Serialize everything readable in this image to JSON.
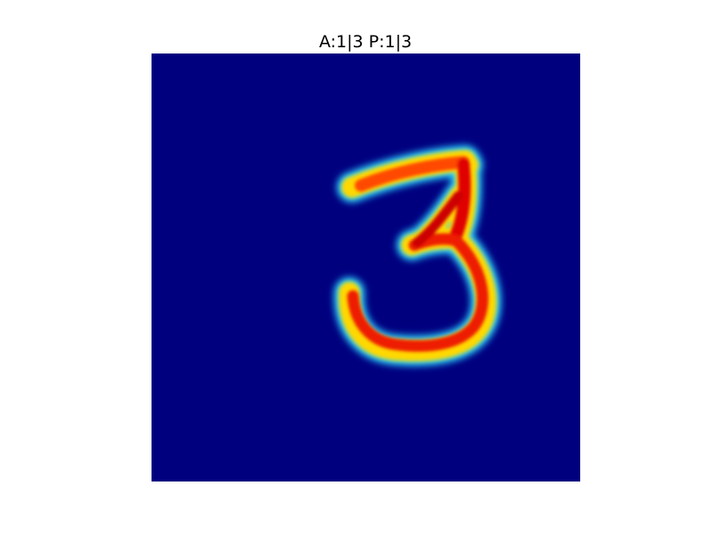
{
  "figure": {
    "title": "A:1|3 P:1|3"
  },
  "image": {
    "colormap": "jet",
    "background_color": "#00007f",
    "depicted_digit": "3"
  }
}
